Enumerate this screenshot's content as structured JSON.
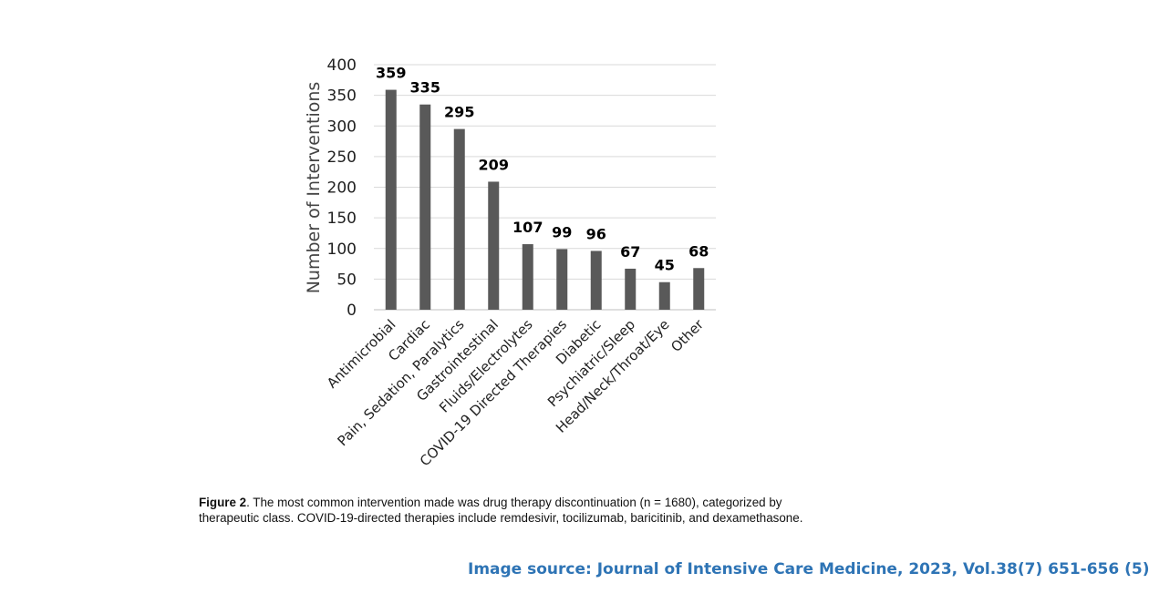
{
  "colors": {
    "bar": "#595959",
    "grid": "#d9d9d9",
    "axis_text": "#222222",
    "value_label": "#000000",
    "source_text": "#2e74b5"
  },
  "chart_data": {
    "type": "bar",
    "title": "",
    "xlabel": "",
    "ylabel": "Number of Interventions",
    "ylim": [
      0,
      400
    ],
    "yticks": [
      0,
      50,
      100,
      150,
      200,
      250,
      300,
      350,
      400
    ],
    "grid": true,
    "categories": [
      "Antimicrobial",
      "Cardiac",
      "Pain, Sedation, Paralytics",
      "Gastrointestinal",
      "Fluids/Electrolytes",
      "COVID-19 Directed Therapies",
      "Diabetic",
      "Psychiatric/Sleep",
      "Head/Neck/Throat/Eye",
      "Other"
    ],
    "values": [
      359,
      335,
      295,
      209,
      107,
      99,
      96,
      67,
      45,
      68
    ],
    "data_labels": true
  },
  "caption": {
    "label": "Figure 2",
    "text": ". The most common intervention made was drug therapy discontinuation (n = 1680), categorized by therapeutic class. COVID-19-directed therapies include remdesivir, tocilizumab, baricitinib, and dexamethasone."
  },
  "source_note": "Image source: Journal of Intensive Care Medicine, 2023, Vol.38(7) 651-656 (5)"
}
